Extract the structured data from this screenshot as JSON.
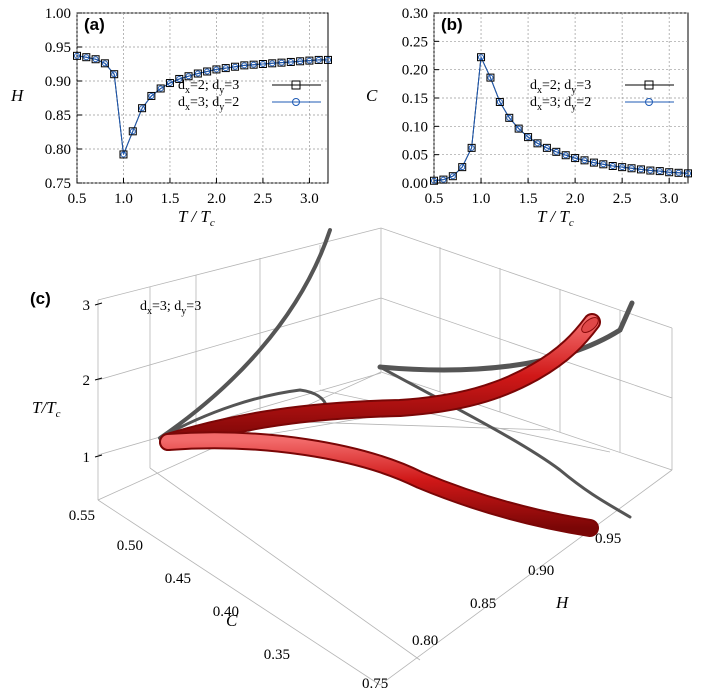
{
  "chart_data": [
    {
      "panel": "(a)",
      "type": "line",
      "xlabel": "T / T",
      "xlabel_sub": "c",
      "ylabel": "H",
      "xlim": [
        0.5,
        3.2
      ],
      "ylim": [
        0.75,
        1.0
      ],
      "xticks": [
        "0.5",
        "1.0",
        "1.5",
        "2.0",
        "2.5",
        "3.0"
      ],
      "yticks": [
        "0.75",
        "0.80",
        "0.85",
        "0.90",
        "0.95",
        "1.00"
      ],
      "x": [
        0.5,
        0.6,
        0.7,
        0.8,
        0.9,
        1.0,
        1.1,
        1.2,
        1.3,
        1.4,
        1.5,
        1.6,
        1.7,
        1.8,
        1.9,
        2.0,
        2.1,
        2.2,
        2.3,
        2.4,
        2.5,
        2.6,
        2.7,
        2.8,
        2.9,
        3.0,
        3.1,
        3.2
      ],
      "series": [
        {
          "name": "d",
          "legend_main": "d",
          "legend_parts": [
            "x",
            "=2; d",
            "y",
            "=3"
          ],
          "marker": "square",
          "color": "#000000",
          "values": [
            0.937,
            0.935,
            0.932,
            0.926,
            0.91,
            0.792,
            0.826,
            0.86,
            0.878,
            0.889,
            0.897,
            0.903,
            0.907,
            0.911,
            0.914,
            0.917,
            0.919,
            0.921,
            0.923,
            0.924,
            0.925,
            0.926,
            0.927,
            0.928,
            0.929,
            0.93,
            0.931,
            0.931
          ]
        },
        {
          "name": "d",
          "legend_main": "d",
          "legend_parts": [
            "x",
            "=3; d",
            "y",
            "=2"
          ],
          "marker": "circle",
          "color": "#1f5bb5",
          "values": [
            0.937,
            0.935,
            0.932,
            0.926,
            0.91,
            0.792,
            0.826,
            0.86,
            0.878,
            0.889,
            0.897,
            0.903,
            0.907,
            0.911,
            0.914,
            0.917,
            0.919,
            0.921,
            0.923,
            0.924,
            0.925,
            0.926,
            0.927,
            0.928,
            0.929,
            0.93,
            0.931,
            0.931
          ]
        }
      ]
    },
    {
      "panel": "(b)",
      "type": "line",
      "xlabel": "T / T",
      "xlabel_sub": "c",
      "ylabel": "C",
      "xlim": [
        0.5,
        3.2
      ],
      "ylim": [
        0.0,
        0.3
      ],
      "xticks": [
        "0.5",
        "1.0",
        "1.5",
        "2.0",
        "2.5",
        "3.0"
      ],
      "yticks": [
        "0.00",
        "0.05",
        "0.10",
        "0.15",
        "0.20",
        "0.25",
        "0.30"
      ],
      "x": [
        0.5,
        0.6,
        0.7,
        0.8,
        0.9,
        1.0,
        1.1,
        1.2,
        1.3,
        1.4,
        1.5,
        1.6,
        1.7,
        1.8,
        1.9,
        2.0,
        2.1,
        2.2,
        2.3,
        2.4,
        2.5,
        2.6,
        2.7,
        2.8,
        2.9,
        3.0,
        3.1,
        3.2
      ],
      "series": [
        {
          "name": "d",
          "legend_main": "d",
          "legend_parts": [
            "x",
            "=2; d",
            "y",
            "=3"
          ],
          "marker": "square",
          "color": "#000000",
          "values": [
            0.004,
            0.006,
            0.012,
            0.028,
            0.062,
            0.222,
            0.186,
            0.143,
            0.115,
            0.096,
            0.081,
            0.07,
            0.062,
            0.055,
            0.049,
            0.044,
            0.04,
            0.036,
            0.033,
            0.03,
            0.028,
            0.026,
            0.024,
            0.022,
            0.021,
            0.019,
            0.018,
            0.017
          ]
        },
        {
          "name": "d",
          "legend_main": "d",
          "legend_parts": [
            "x",
            "=3; d",
            "y",
            "=2"
          ],
          "marker": "circle",
          "color": "#1f5bb5",
          "values": [
            0.004,
            0.006,
            0.012,
            0.028,
            0.062,
            0.222,
            0.186,
            0.143,
            0.115,
            0.096,
            0.081,
            0.07,
            0.062,
            0.055,
            0.049,
            0.044,
            0.04,
            0.036,
            0.033,
            0.03,
            0.028,
            0.026,
            0.024,
            0.022,
            0.021,
            0.019,
            0.018,
            0.017
          ]
        }
      ]
    },
    {
      "panel": "(c)",
      "type": "line3d",
      "annotation_parts": [
        "d",
        "x",
        "=3; d",
        "y",
        "=3"
      ],
      "zlabel": "T/T",
      "zlabel_sub": "c",
      "zticks": [
        "1",
        "2",
        "3"
      ],
      "clabel": "C",
      "cticks": [
        "0.55",
        "0.50",
        "0.45",
        "0.40",
        "0.35"
      ],
      "hlabel": "H",
      "hticks": [
        "0.75",
        "0.80",
        "0.85",
        "0.90",
        "0.95"
      ],
      "tube_color": "#d01818",
      "shadow_color": "#555555"
    }
  ]
}
